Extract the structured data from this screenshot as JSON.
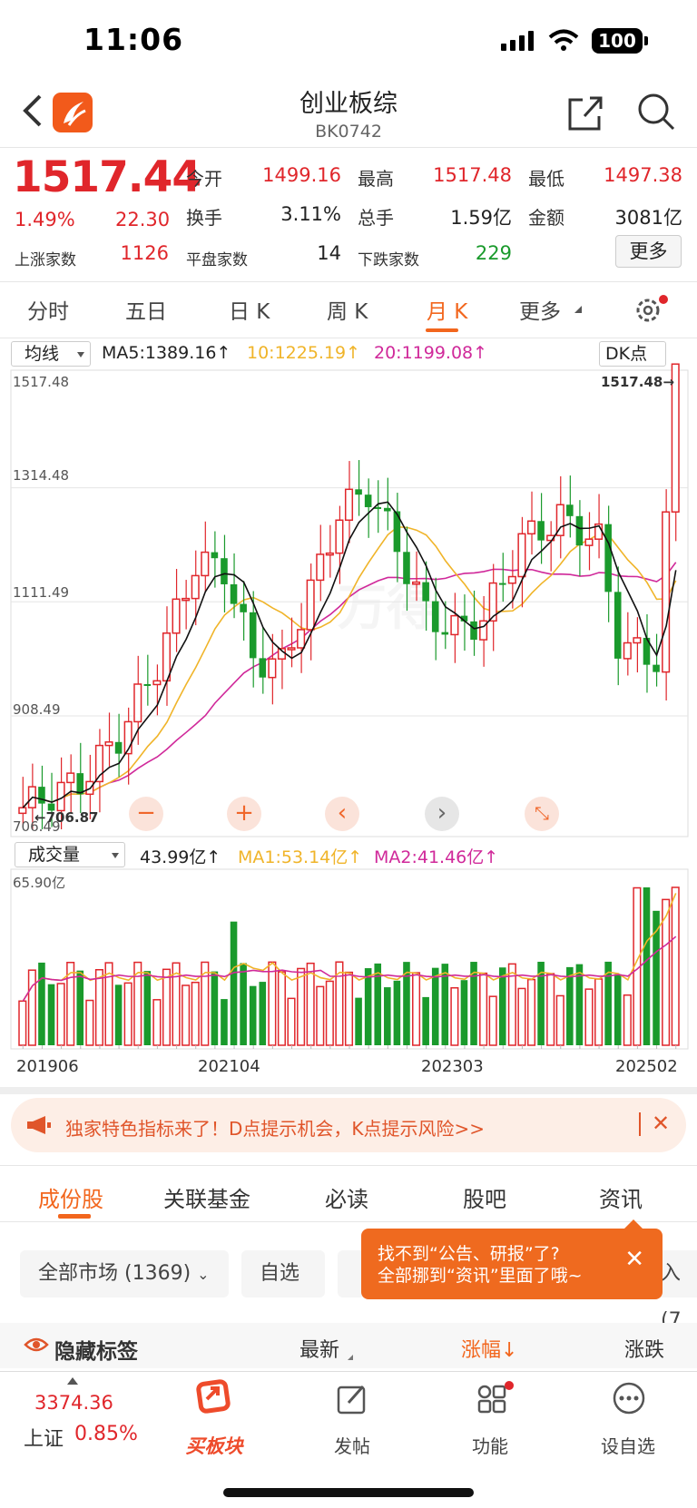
{
  "status_bar": {
    "time": "11:06",
    "battery": "100"
  },
  "header": {
    "title": "创业板综",
    "code": "BK0742"
  },
  "quote": {
    "price": "1517.44",
    "change_pct": "1.49%",
    "change": "22.30",
    "open_label": "今开",
    "open": "1499.16",
    "high_label": "最高",
    "high": "1517.48",
    "low_label": "最低",
    "low": "1497.38",
    "turnover_label": "换手",
    "turnover": "3.11%",
    "volume_label": "总手",
    "volume": "1.59亿",
    "amount_label": "金额",
    "amount": "3081亿",
    "up_label": "上涨家数",
    "up": "1126",
    "flat_label": "平盘家数",
    "flat": "14",
    "down_label": "下跌家数",
    "down": "229",
    "more_label": "更多"
  },
  "chart_tabs": [
    "分时",
    "五日",
    "日 K",
    "周 K",
    "月 K",
    "更多"
  ],
  "active_chart_tab": "月 K",
  "ma_bar": {
    "select": "均线",
    "ma5": "MA5:1389.16↑",
    "ma10": "10:1225.19↑",
    "ma20": "20:1199.08↑",
    "dk_button": "DK点"
  },
  "price_axis": {
    "labels": [
      "1517.48",
      "1314.48",
      "1111.49",
      "908.49",
      "706.49"
    ],
    "high_marker": "1517.48",
    "low_marker": "706.87"
  },
  "volume_bar": {
    "select": "成交量",
    "vol": "43.99亿↑",
    "ma1": "MA1:53.14亿↑",
    "ma2": "MA2:41.46亿↑",
    "axis_max": "65.90亿"
  },
  "x_axis_dates": [
    "201906",
    "202104",
    "202303",
    "202502"
  ],
  "colors": {
    "up": "#e0262b",
    "down": "#1a9a2c",
    "ma5": "#111111",
    "ma10": "#f0b429",
    "ma20": "#d0299a",
    "accent": "#f2661d"
  },
  "chart_data": {
    "type": "candlestick",
    "period": "monthly",
    "ylim": [
      706.49,
      1517.48
    ],
    "x_ticks": [
      "201906",
      "202104",
      "202303",
      "202502"
    ],
    "last_close": 1517.44,
    "high_marker": 1517.48,
    "low_marker": 706.87,
    "ma": {
      "MA5": 1389.16,
      "MA10": 1225.19,
      "MA20": 1199.08
    },
    "volume": {
      "last": "43.99亿",
      "MA1": "53.14亿",
      "MA2": "41.46亿",
      "max": "65.90亿"
    }
  },
  "banner": {
    "text": "独家特色指标来了！D点提示机会，K点提示风险>>"
  },
  "bottom_tabs": [
    "成份股",
    "关联基金",
    "必读",
    "股吧",
    "资讯"
  ],
  "filters": {
    "market": "全部市场 (1369)",
    "watch": "自选",
    "partial": "入 (7"
  },
  "tooltip": {
    "line1": "找不到“公告、研报”了?",
    "line2": "全部挪到“资讯”里面了哦~"
  },
  "sort_row": {
    "hide_tags": "隐藏标签",
    "latest": "最新",
    "change": "涨幅",
    "change_amt": "涨跌"
  },
  "nav": {
    "index_value": "3374.36",
    "index_name": "上证",
    "index_change": "0.85%",
    "buy": "买板块",
    "post": "发帖",
    "func": "功能",
    "watch": "设自选"
  }
}
